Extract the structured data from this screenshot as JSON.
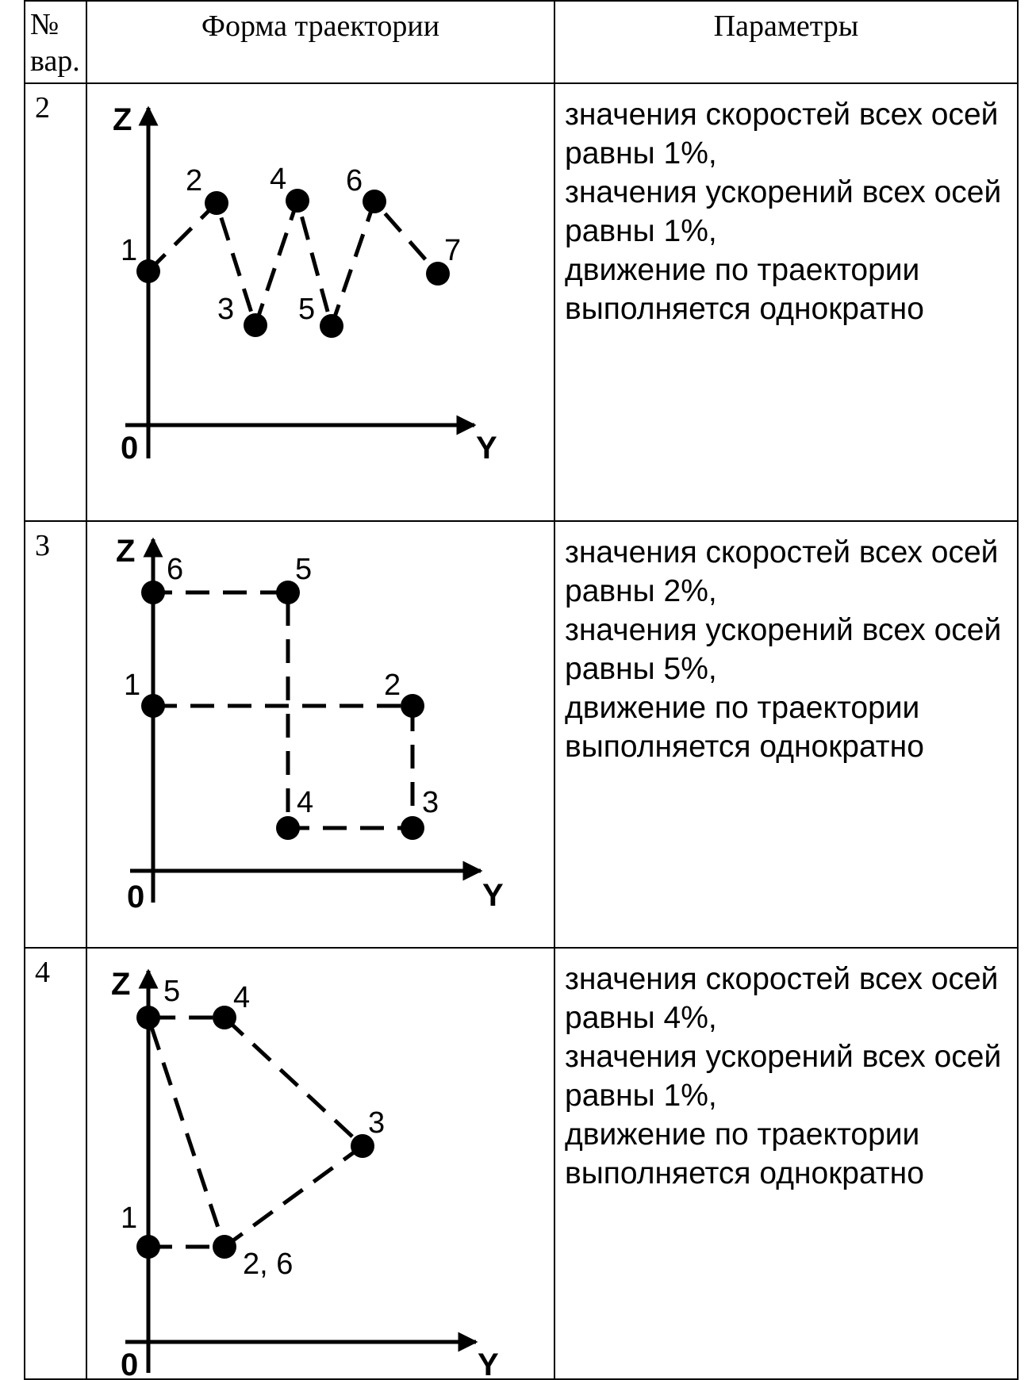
{
  "header": {
    "num_label_line1": "№",
    "num_label_line2": "вар.",
    "form_label": "Форма траектории",
    "params_label": "Параметры"
  },
  "rows": [
    {
      "variant": "2",
      "axis_z": "Z",
      "axis_y": "Y",
      "origin": "0",
      "points": [
        "1",
        "2",
        "3",
        "4",
        "5",
        "6",
        "7"
      ],
      "params": {
        "line1": "значения скоростей всех осей",
        "line2": "равны 1%,",
        "line3": "значения ускорений всех осей",
        "line4": "равны 1%,",
        "line5": "движение по траектории",
        "line6": "выполняется однократно"
      }
    },
    {
      "variant": "3",
      "axis_z": "Z",
      "axis_y": "Y",
      "origin": "0",
      "points": [
        "1",
        "2",
        "3",
        "4",
        "5",
        "6"
      ],
      "params": {
        "line1": "значения скоростей всех осей",
        "line2": "равны 2%,",
        "line3": "значения ускорений всех осей",
        "line4": "равны 5%,",
        "line5": "движение по траектории",
        "line6": "выполняется однократно"
      }
    },
    {
      "variant": "4",
      "axis_z": "Z",
      "axis_y": "Y",
      "origin": "0",
      "points": [
        "1",
        "2, 6",
        "3",
        "4",
        "5"
      ],
      "params": {
        "line1": "значения скоростей всех осей",
        "line2": "равны 4%,",
        "line3": "значения ускорений всех осей",
        "line4": "равны 1%,",
        "line5": "движение по траектории",
        "line6": "выполняется однократно"
      }
    }
  ]
}
